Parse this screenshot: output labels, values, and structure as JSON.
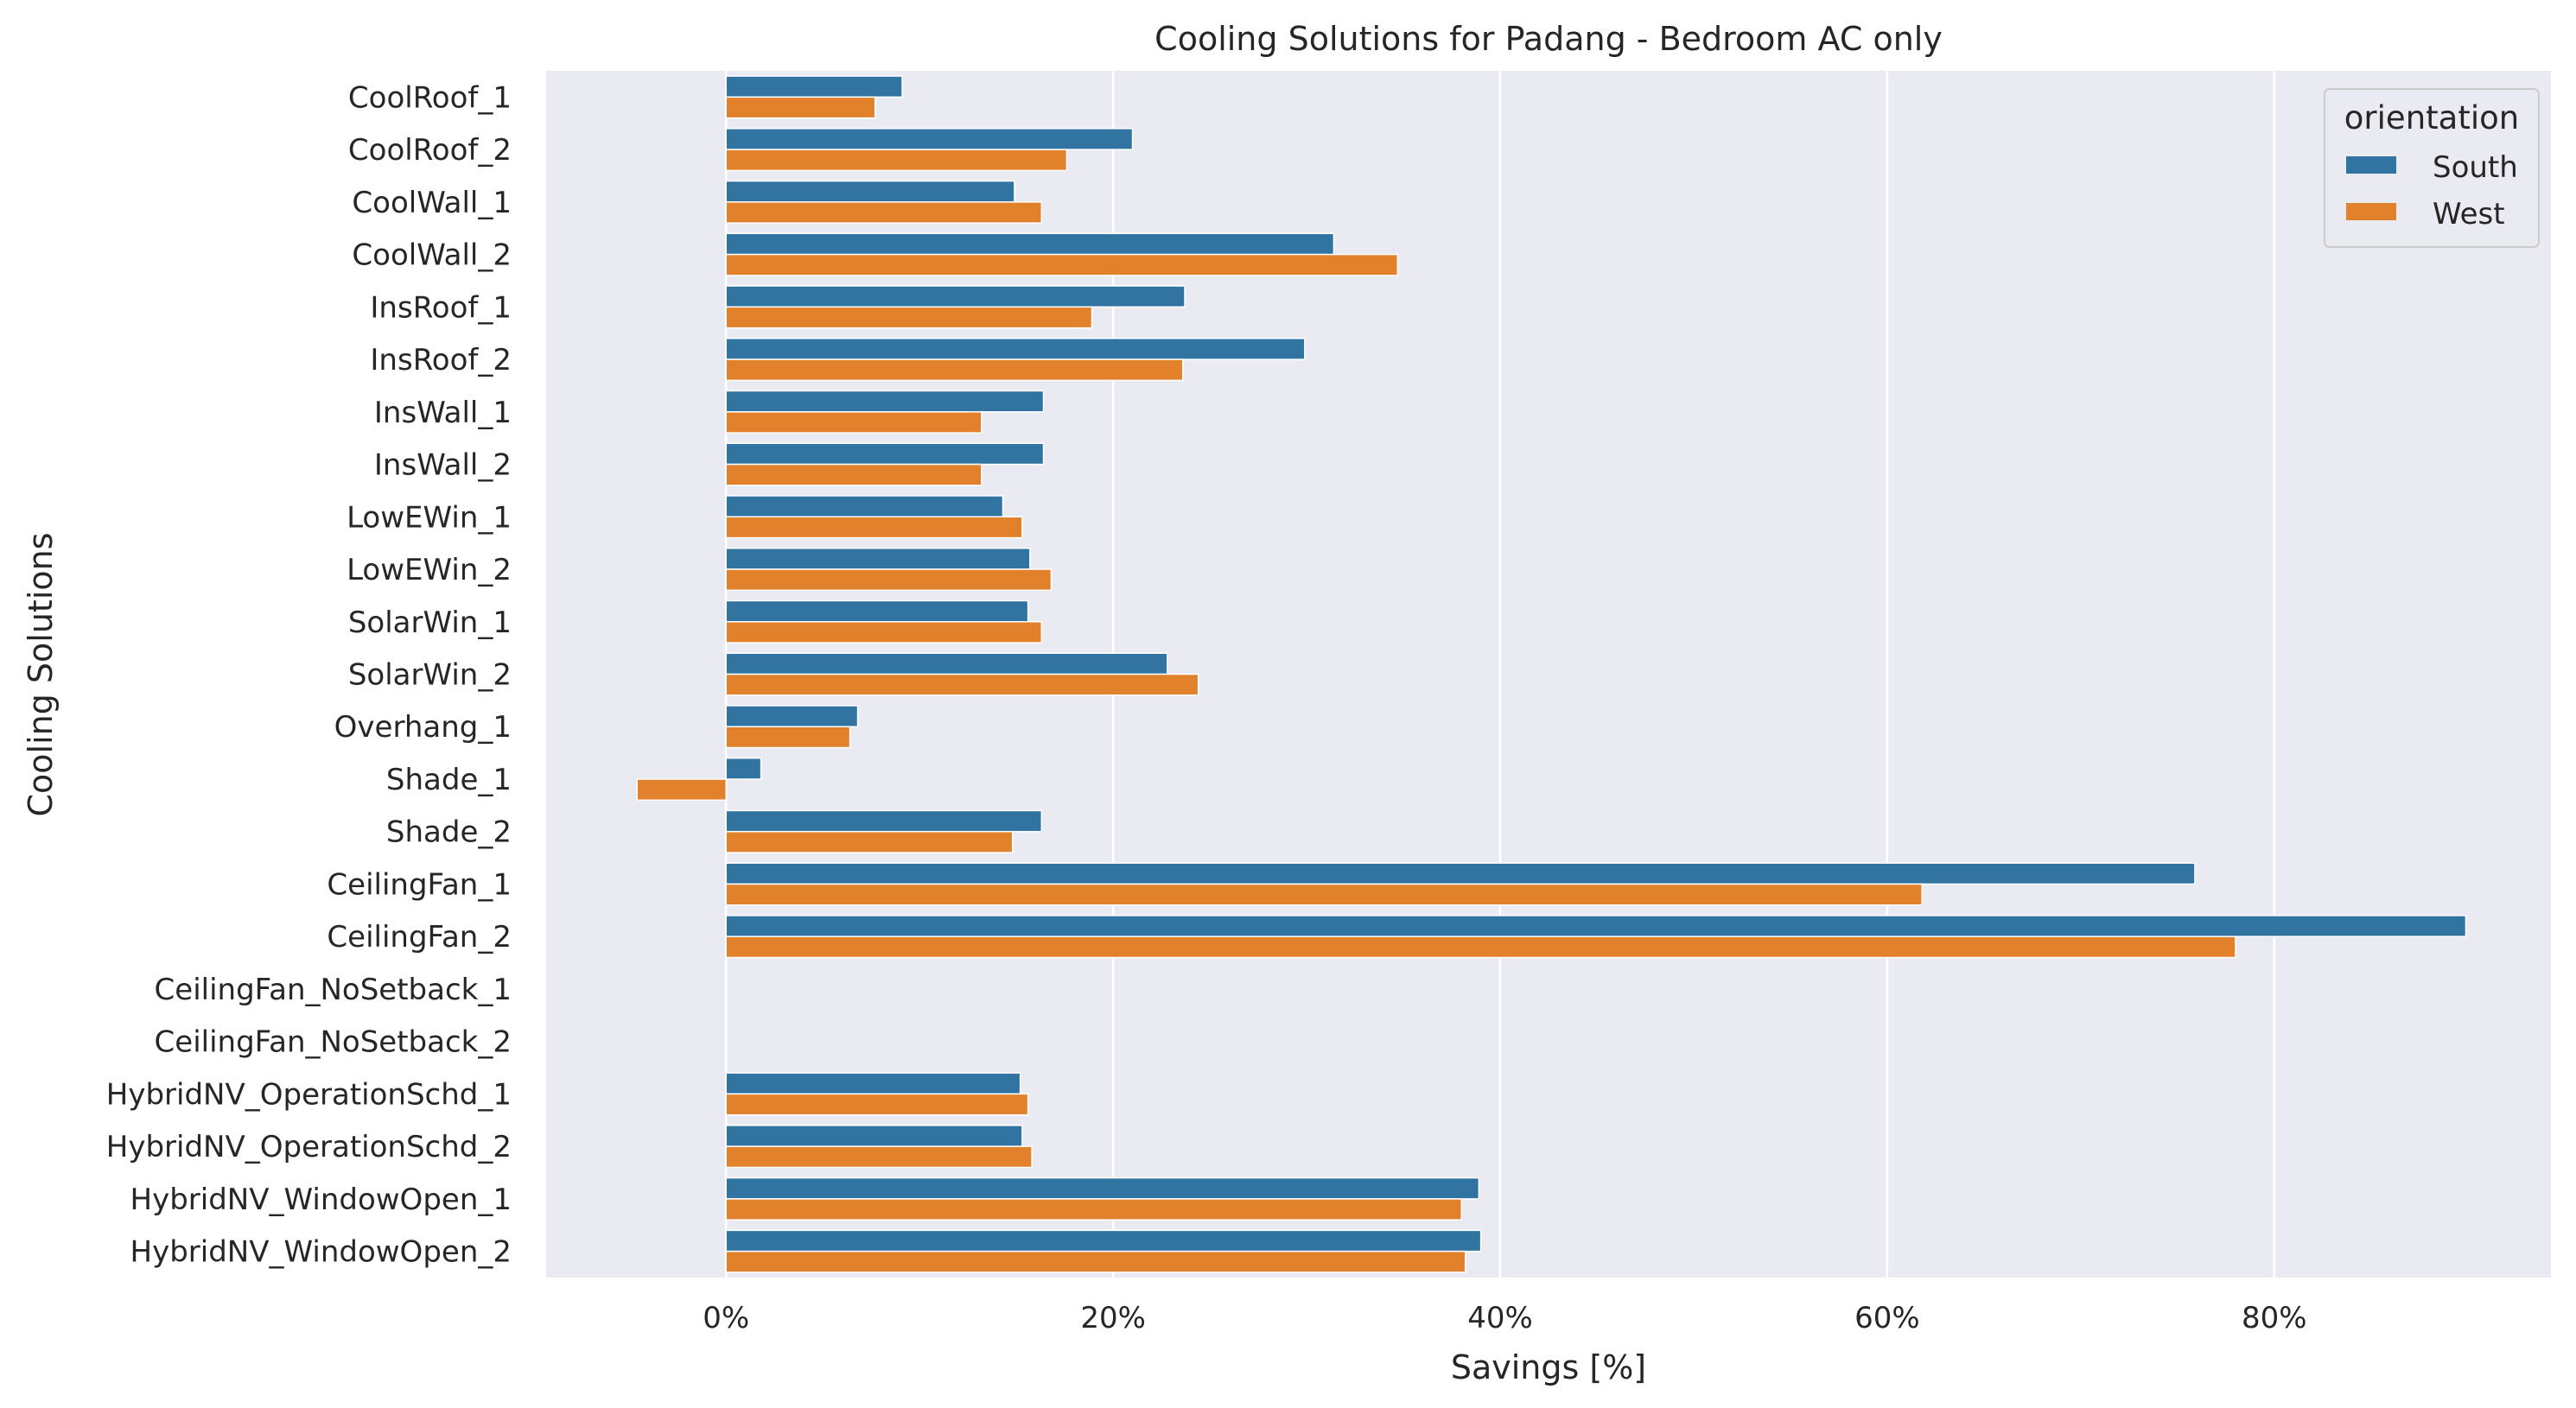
{
  "chart_data": {
    "type": "bar",
    "orientation": "horizontal",
    "title": "Cooling Solutions for Padang - Bedroom AC only",
    "xlabel": "Savings [%]",
    "ylabel": "Cooling Solutions",
    "xlim": [
      -9.3,
      94.3
    ],
    "xticks": [
      0,
      20,
      40,
      60,
      80
    ],
    "xtick_labels": [
      "0%",
      "20%",
      "40%",
      "60%",
      "80%"
    ],
    "grid": "x-major",
    "background": "#eaeaf2",
    "legend": {
      "title": "orientation",
      "placement": "top-right"
    },
    "categories": [
      "CoolRoof_1",
      "CoolRoof_2",
      "CoolWall_1",
      "CoolWall_2",
      "InsRoof_1",
      "InsRoof_2",
      "InsWall_1",
      "InsWall_2",
      "LowEWin_1",
      "LowEWin_2",
      "SolarWin_1",
      "SolarWin_2",
      "Overhang_1",
      "Shade_1",
      "Shade_2",
      "CeilingFan_1",
      "CeilingFan_2",
      "CeilingFan_NoSetback_1",
      "CeilingFan_NoSetback_2",
      "HybridNV_OperationSchd_1",
      "HybridNV_OperationSchd_2",
      "HybridNV_WindowOpen_1",
      "HybridNV_WindowOpen_2"
    ],
    "series": [
      {
        "name": "South",
        "color": "#3274a1",
        "values": [
          9.1,
          21.0,
          14.9,
          31.4,
          23.7,
          29.9,
          16.4,
          16.4,
          14.3,
          15.7,
          15.6,
          22.8,
          6.8,
          1.8,
          16.3,
          75.9,
          89.9,
          null,
          null,
          15.2,
          15.3,
          38.9,
          39.0
        ]
      },
      {
        "name": "West",
        "color": "#e1812c",
        "values": [
          7.7,
          17.6,
          16.3,
          34.7,
          18.9,
          23.6,
          13.2,
          13.2,
          15.3,
          16.8,
          16.3,
          24.4,
          6.4,
          -4.6,
          14.8,
          61.8,
          78.0,
          null,
          null,
          15.6,
          15.8,
          38.0,
          38.2
        ]
      }
    ]
  }
}
